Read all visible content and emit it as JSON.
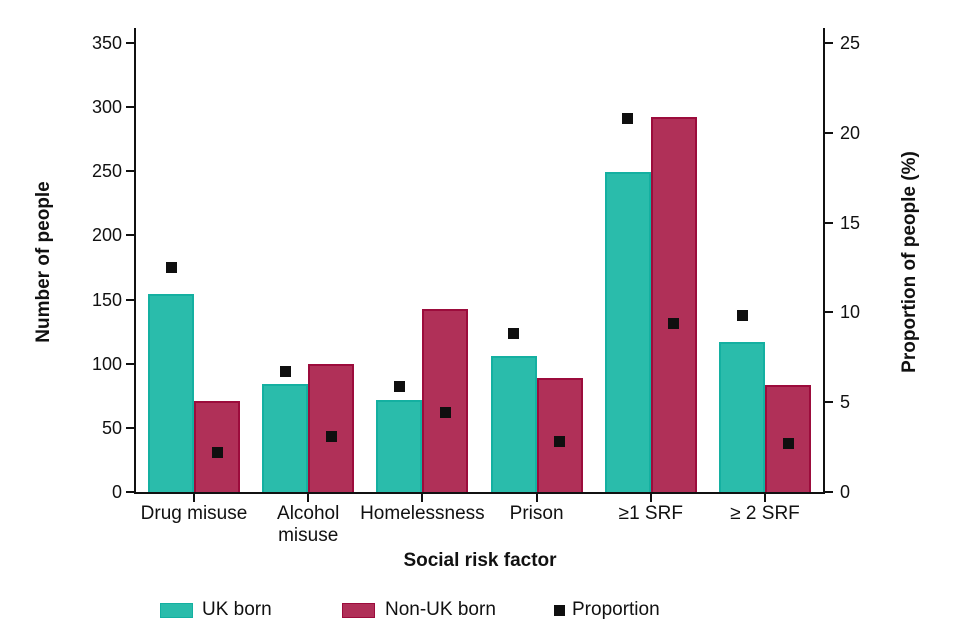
{
  "chart_data": {
    "type": "bar",
    "title": "",
    "grid": false,
    "legend_position": "bottom",
    "x_axis": {
      "label": "Social risk factor",
      "categories": [
        "Drug misuse",
        "Alcohol misuse",
        "Homelessness",
        "Prison",
        "≥1 SRF",
        "≥ 2 SRF"
      ],
      "category_lines": [
        [
          "Drug misuse"
        ],
        [
          "Alcohol",
          "misuse"
        ],
        [
          "Homelessness"
        ],
        [
          "Prison"
        ],
        [
          "≥1 SRF"
        ],
        [
          "≥ 2 SRF"
        ]
      ]
    },
    "left_axis": {
      "label": "Number of people",
      "min": 0,
      "max": 350,
      "tick_step": 50,
      "ticks": [
        0,
        50,
        100,
        150,
        200,
        250,
        300,
        350
      ]
    },
    "right_axis": {
      "label": "Proportion of people (%)",
      "min": 0,
      "max": 25,
      "tick_step": 5,
      "ticks": [
        0,
        5,
        10,
        15,
        20,
        25
      ]
    },
    "series": [
      {
        "name": "UK born",
        "type": "bar",
        "axis": "left",
        "fill": "#2ABCAB",
        "border": "#14B0A1",
        "values": [
          154,
          84,
          72,
          106,
          249,
          117
        ]
      },
      {
        "name": "Non-UK born",
        "type": "bar",
        "axis": "left",
        "fill": "#B03058",
        "border": "#9C0C3C",
        "values": [
          71,
          100,
          143,
          89,
          292,
          83
        ]
      },
      {
        "name": "Proportion",
        "type": "scatter",
        "axis": "right",
        "marker": "black-square",
        "color": "#0F0F0F",
        "uk_born_values": [
          12.5,
          6.7,
          5.9,
          8.8,
          20.8,
          9.8
        ],
        "non_uk_born_values": [
          2.2,
          3.1,
          4.4,
          2.8,
          9.4,
          2.7
        ]
      }
    ],
    "legend": [
      {
        "label": "UK born",
        "swatch": "teal-rect"
      },
      {
        "label": "Non-UK born",
        "swatch": "crimson-rect"
      },
      {
        "label": "Proportion",
        "swatch": "black-square"
      }
    ],
    "colors": {
      "uk_born": "#2ABCAB",
      "non_uk_born": "#B03058",
      "proportion_marker": "#0F0F0F",
      "axis": "#111111"
    }
  }
}
